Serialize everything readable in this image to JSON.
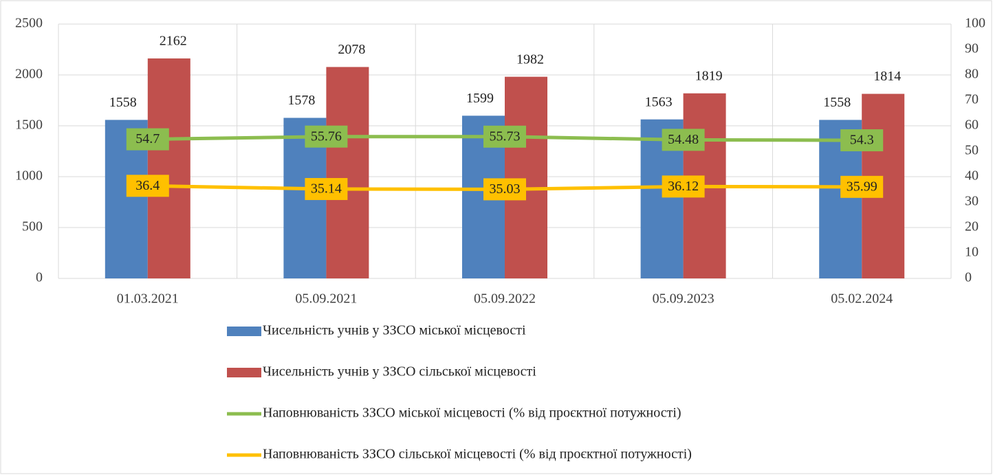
{
  "chart_data": {
    "type": "bar",
    "categories": [
      "01.03.2021",
      "05.09.2021",
      "05.09.2022",
      "05.09.2023",
      "05.02.2024"
    ],
    "series": [
      {
        "name": "Чисельність учнів у ЗЗСО міської місцевості",
        "type": "bar",
        "color": "#4f81bd",
        "values": [
          1558,
          1578,
          1599,
          1563,
          1558
        ]
      },
      {
        "name": "Чисельність учнів у ЗЗСО сільської місцевості",
        "type": "bar",
        "color": "#c0504d",
        "values": [
          2162,
          2078,
          1982,
          1819,
          1814
        ]
      },
      {
        "name": "Наповнюваність ЗЗСО міської місцевості (% від проєктної потужності)",
        "type": "line",
        "axis": "y2",
        "color": "#8cbd4f",
        "values": [
          54.7,
          55.76,
          55.73,
          54.48,
          54.3
        ]
      },
      {
        "name": "Наповнюваність ЗЗСО сільської місцевості (% від проєктної потужності)",
        "type": "line",
        "axis": "y2",
        "color": "#ffc000",
        "values": [
          36.4,
          35.14,
          35.03,
          36.12,
          35.99
        ]
      }
    ],
    "ylim": [
      0,
      2500
    ],
    "yticks": [
      0,
      500,
      1000,
      1500,
      2000,
      2500
    ],
    "y2lim": [
      0,
      100
    ],
    "y2ticks": [
      0,
      10,
      20,
      30,
      40,
      50,
      60,
      70,
      80,
      90,
      100
    ],
    "grid": true,
    "legend": "bottom"
  }
}
